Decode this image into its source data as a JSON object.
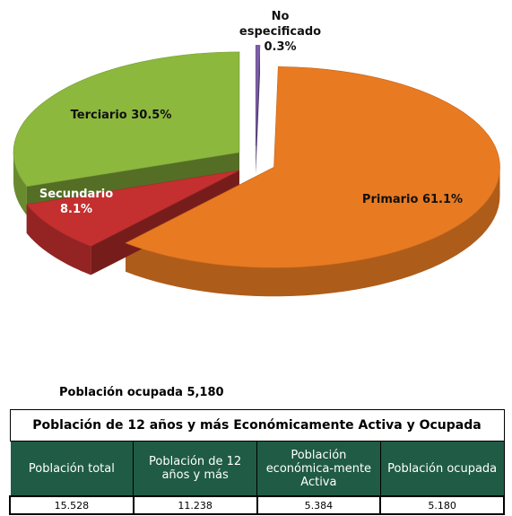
{
  "chart_data": {
    "type": "pie",
    "categories": [
      "No especificado",
      "Primario",
      "Secundario",
      "Terciario"
    ],
    "values": [
      0.3,
      61.1,
      8.1,
      30.5
    ],
    "value_labels": [
      "0.3%",
      "61.1%",
      "8.1%",
      "30.5%"
    ],
    "colors": [
      "#7b5ea8",
      "#e87a22",
      "#c4302f",
      "#8cb83e"
    ]
  },
  "caption": "Población ocupada 5,180",
  "table": {
    "title": "Población de 12 años y más Económicamente Activa y Ocupada",
    "header": [
      "Población total",
      "Población de 12 años y más",
      "Población económica-mente Activa",
      "Población ocupada"
    ],
    "rows": [
      [
        "15.528",
        "11.238",
        "5.384",
        "5.180"
      ]
    ]
  }
}
